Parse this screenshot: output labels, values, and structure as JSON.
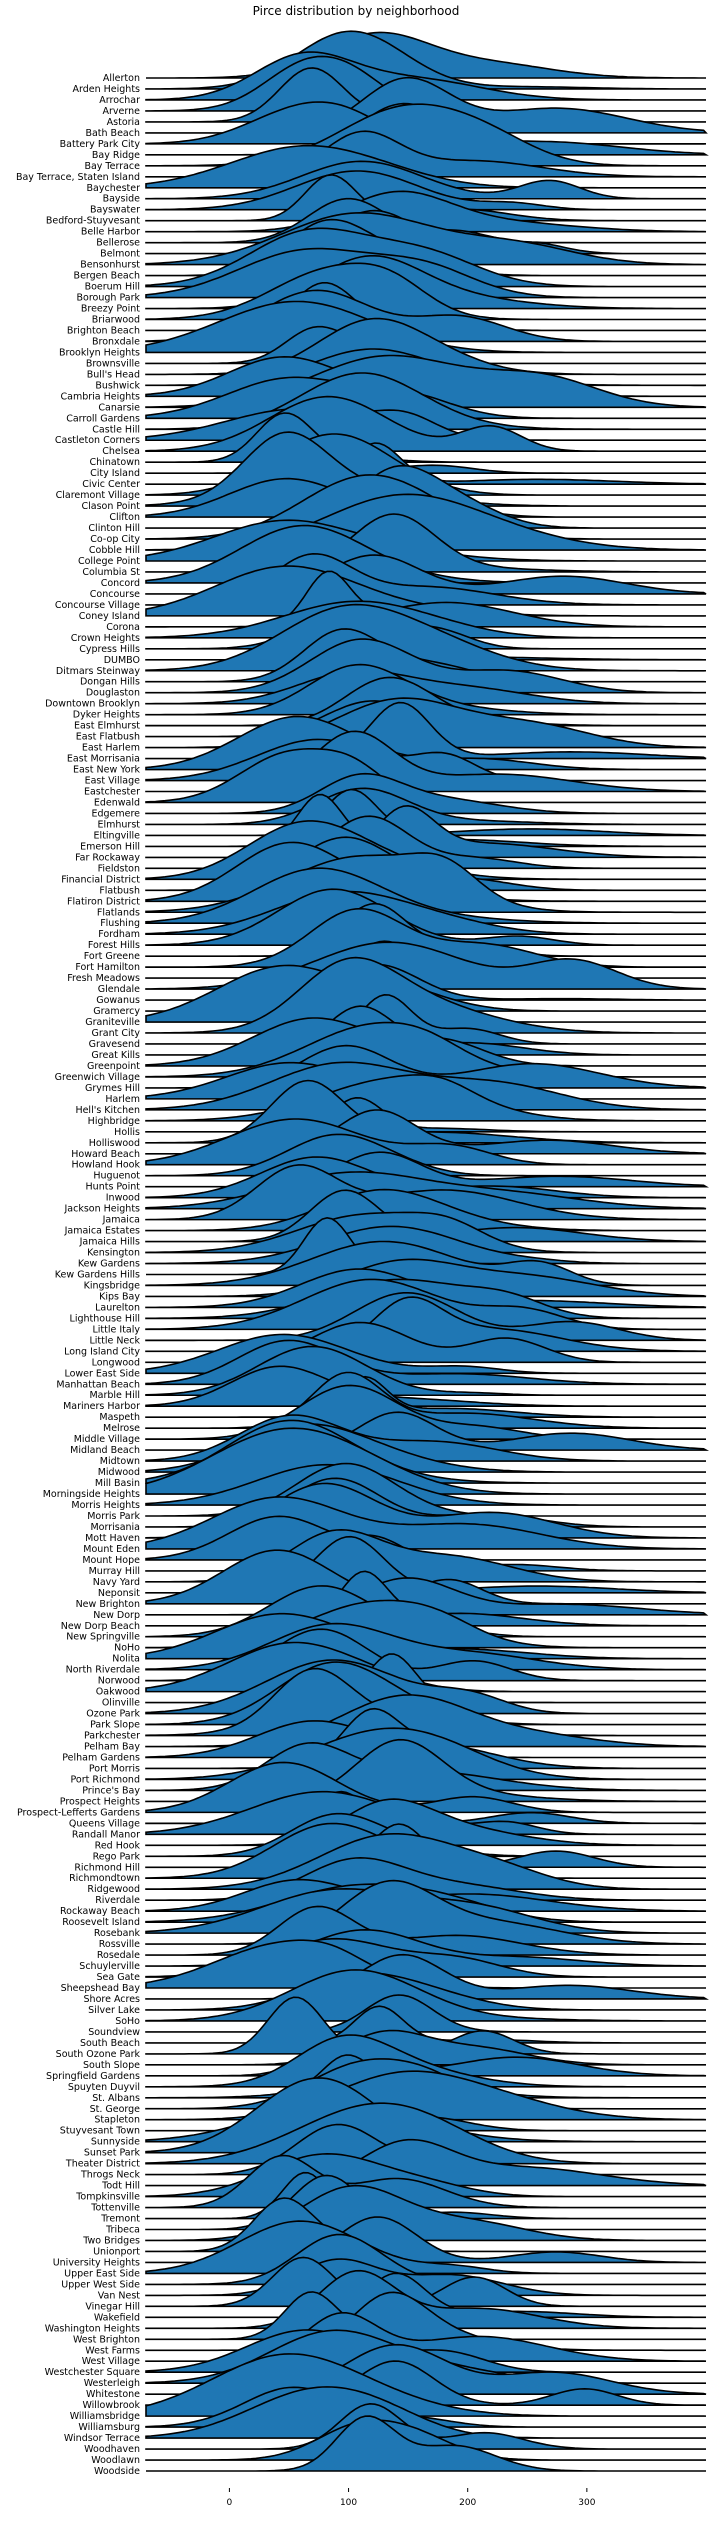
{
  "chart_data": {
    "type": "area",
    "title": "Pirce distribution by neighborhood",
    "xlabel": "",
    "ylabel": "",
    "xlim": [
      -70,
      400
    ],
    "x_ticks": [
      0,
      100,
      200,
      300
    ],
    "grid": false,
    "fill_color": "#1f77b4",
    "categories": [
      "Allerton",
      "Arden Heights",
      "Arrochar",
      "Arverne",
      "Astoria",
      "Bath Beach",
      "Battery Park City",
      "Bay Ridge",
      "Bay Terrace",
      "Bay Terrace, Staten Island",
      "Baychester",
      "Bayside",
      "Bayswater",
      "Bedford-Stuyvesant",
      "Belle Harbor",
      "Bellerose",
      "Belmont",
      "Bensonhurst",
      "Bergen Beach",
      "Boerum Hill",
      "Borough Park",
      "Breezy Point",
      "Briarwood",
      "Brighton Beach",
      "Bronxdale",
      "Brooklyn Heights",
      "Brownsville",
      "Bull's Head",
      "Bushwick",
      "Cambria Heights",
      "Canarsie",
      "Carroll Gardens",
      "Castle Hill",
      "Castleton Corners",
      "Chelsea",
      "Chinatown",
      "City Island",
      "Civic Center",
      "Claremont Village",
      "Clason Point",
      "Clifton",
      "Clinton Hill",
      "Co-op City",
      "Cobble Hill",
      "College Point",
      "Columbia St",
      "Concord",
      "Concourse",
      "Concourse Village",
      "Coney Island",
      "Corona",
      "Crown Heights",
      "Cypress Hills",
      "DUMBO",
      "Ditmars Steinway",
      "Dongan Hills",
      "Douglaston",
      "Downtown Brooklyn",
      "Dyker Heights",
      "East Elmhurst",
      "East Flatbush",
      "East Harlem",
      "East Morrisania",
      "East New York",
      "East Village",
      "Eastchester",
      "Edenwald",
      "Edgemere",
      "Elmhurst",
      "Eltingville",
      "Emerson Hill",
      "Far Rockaway",
      "Fieldston",
      "Financial District",
      "Flatbush",
      "Flatiron District",
      "Flatlands",
      "Flushing",
      "Fordham",
      "Forest Hills",
      "Fort Greene",
      "Fort Hamilton",
      "Fresh Meadows",
      "Glendale",
      "Gowanus",
      "Gramercy",
      "Graniteville",
      "Grant City",
      "Gravesend",
      "Great Kills",
      "Greenpoint",
      "Greenwich Village",
      "Grymes Hill",
      "Harlem",
      "Hell's Kitchen",
      "Highbridge",
      "Hollis",
      "Holliswood",
      "Howard Beach",
      "Howland Hook",
      "Huguenot",
      "Hunts Point",
      "Inwood",
      "Jackson Heights",
      "Jamaica",
      "Jamaica Estates",
      "Jamaica Hills",
      "Kensington",
      "Kew Gardens",
      "Kew Gardens Hills",
      "Kingsbridge",
      "Kips Bay",
      "Laurelton",
      "Lighthouse Hill",
      "Little Italy",
      "Little Neck",
      "Long Island City",
      "Longwood",
      "Lower East Side",
      "Manhattan Beach",
      "Marble Hill",
      "Mariners Harbor",
      "Maspeth",
      "Melrose",
      "Middle Village",
      "Midland Beach",
      "Midtown",
      "Midwood",
      "Mill Basin",
      "Morningside Heights",
      "Morris Heights",
      "Morris Park",
      "Morrisania",
      "Mott Haven",
      "Mount Eden",
      "Mount Hope",
      "Murray Hill",
      "Navy Yard",
      "Neponsit",
      "New Brighton",
      "New Dorp",
      "New Dorp Beach",
      "New Springville",
      "NoHo",
      "Nolita",
      "North Riverdale",
      "Norwood",
      "Oakwood",
      "Olinville",
      "Ozone Park",
      "Park Slope",
      "Parkchester",
      "Pelham Bay",
      "Pelham Gardens",
      "Port Morris",
      "Port Richmond",
      "Prince's Bay",
      "Prospect Heights",
      "Prospect-Lefferts Gardens",
      "Queens Village",
      "Randall Manor",
      "Red Hook",
      "Rego Park",
      "Richmond Hill",
      "Richmondtown",
      "Ridgewood",
      "Riverdale",
      "Rockaway Beach",
      "Roosevelt Island",
      "Rosebank",
      "Rossville",
      "Rosedale",
      "Schuylerville",
      "Sea Gate",
      "Sheepshead Bay",
      "Shore Acres",
      "Silver Lake",
      "SoHo",
      "Soundview",
      "South Beach",
      "South Ozone Park",
      "South Slope",
      "Springfield Gardens",
      "Spuyten Duyvil",
      "St. Albans",
      "St. George",
      "Stapleton",
      "Stuyvesant Town",
      "Sunnyside",
      "Sunset Park",
      "Theater District",
      "Throgs Neck",
      "Todt Hill",
      "Tompkinsville",
      "Tottenville",
      "Tremont",
      "Tribeca",
      "Two Bridges",
      "Unionport",
      "University Heights",
      "Upper East Side",
      "Upper West Side",
      "Van Nest",
      "Vinegar Hill",
      "Wakefield",
      "Washington Heights",
      "West Brighton",
      "West Farms",
      "West Village",
      "Westchester Square",
      "Westerleigh",
      "Whitestone",
      "Willowbrook",
      "Williamsbridge",
      "Williamsburg",
      "Windsor Terrace",
      "Woodhaven",
      "Woodlawn",
      "Woodside"
    ]
  }
}
